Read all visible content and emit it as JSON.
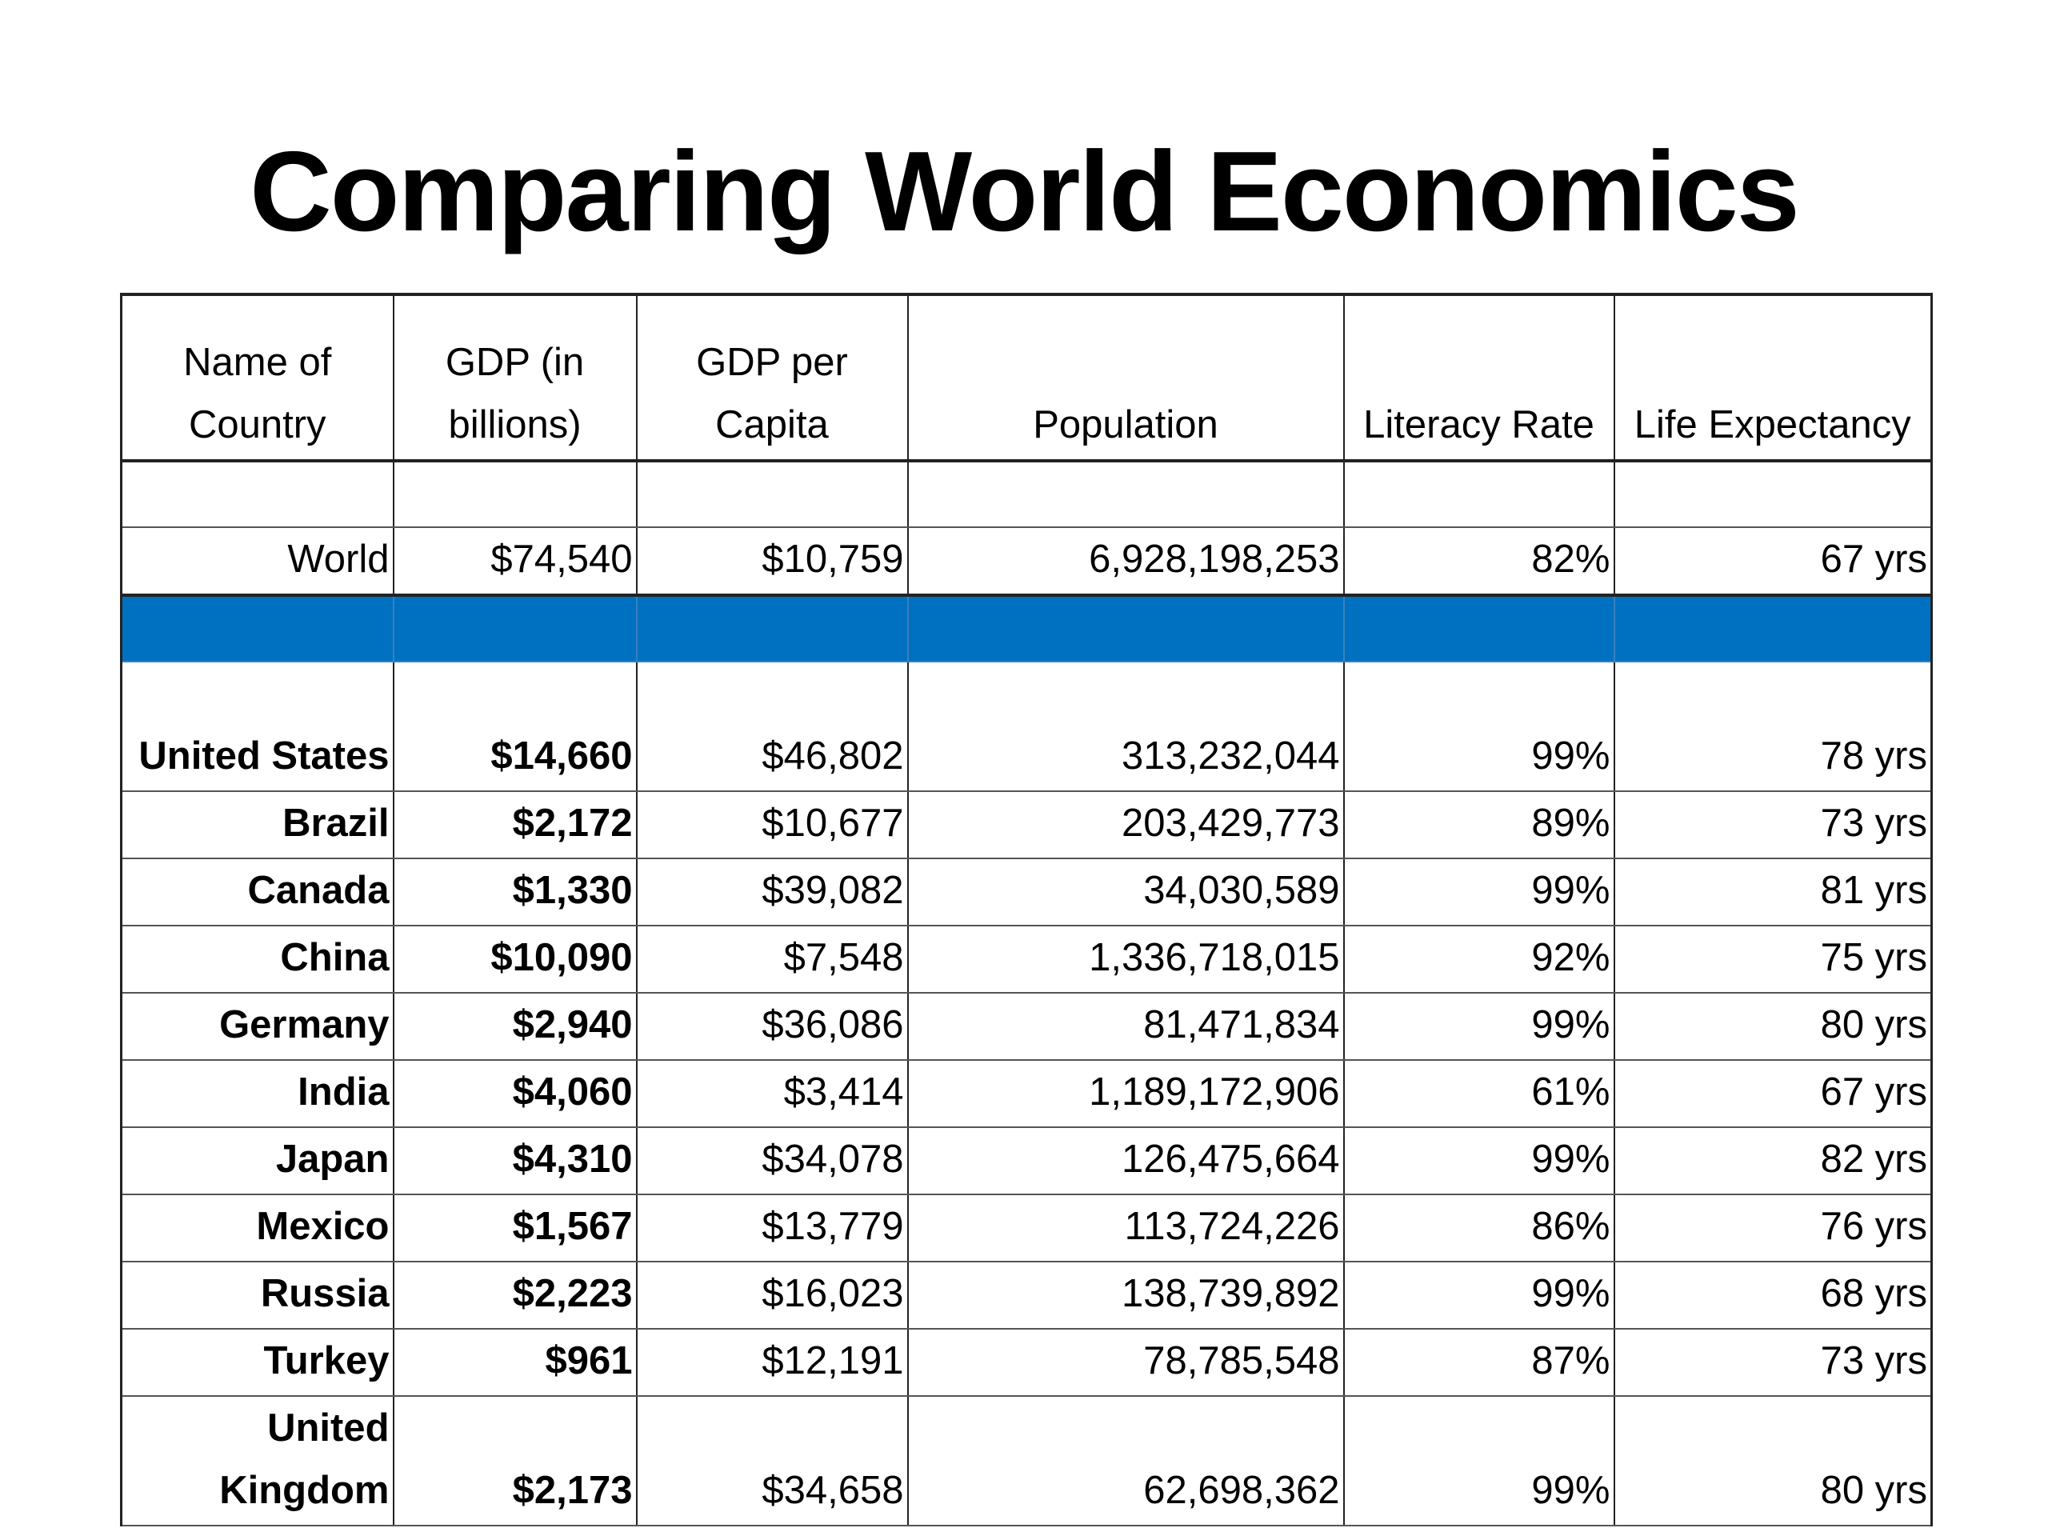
{
  "title": "Comparing World Economics",
  "colors": {
    "separator": "#0070c0"
  },
  "headers": [
    "Name of Country",
    "GDP (in billions)",
    "GDP per Capita",
    "Population",
    "Literacy Rate",
    "Life Expectancy"
  ],
  "world": [
    "World",
    "$74,540",
    "$10,759",
    "6,928,198,253",
    "82%",
    "67 yrs"
  ],
  "countries": [
    [
      "United States",
      "$14,660",
      "$46,802",
      "313,232,044",
      "99%",
      "78 yrs"
    ],
    [
      "Brazil",
      "$2,172",
      "$10,677",
      "203,429,773",
      "89%",
      "73 yrs"
    ],
    [
      "Canada",
      "$1,330",
      "$39,082",
      "34,030,589",
      "99%",
      "81 yrs"
    ],
    [
      "China",
      "$10,090",
      "$7,548",
      "1,336,718,015",
      "92%",
      "75 yrs"
    ],
    [
      "Germany",
      "$2,940",
      "$36,086",
      "81,471,834",
      "99%",
      "80 yrs"
    ],
    [
      "India",
      "$4,060",
      "$3,414",
      "1,189,172,906",
      "61%",
      "67 yrs"
    ],
    [
      "Japan",
      "$4,310",
      "$34,078",
      "126,475,664",
      "99%",
      "82 yrs"
    ],
    [
      "Mexico",
      "$1,567",
      "$13,779",
      "113,724,226",
      "86%",
      "76 yrs"
    ],
    [
      "Russia",
      "$2,223",
      "$16,023",
      "138,739,892",
      "99%",
      "68 yrs"
    ],
    [
      "Turkey",
      "$961",
      "$12,191",
      "78,785,548",
      "87%",
      "73 yrs"
    ],
    [
      "United Kingdom",
      "$2,173",
      "$34,658",
      "62,698,362",
      "99%",
      "80 yrs"
    ]
  ]
}
